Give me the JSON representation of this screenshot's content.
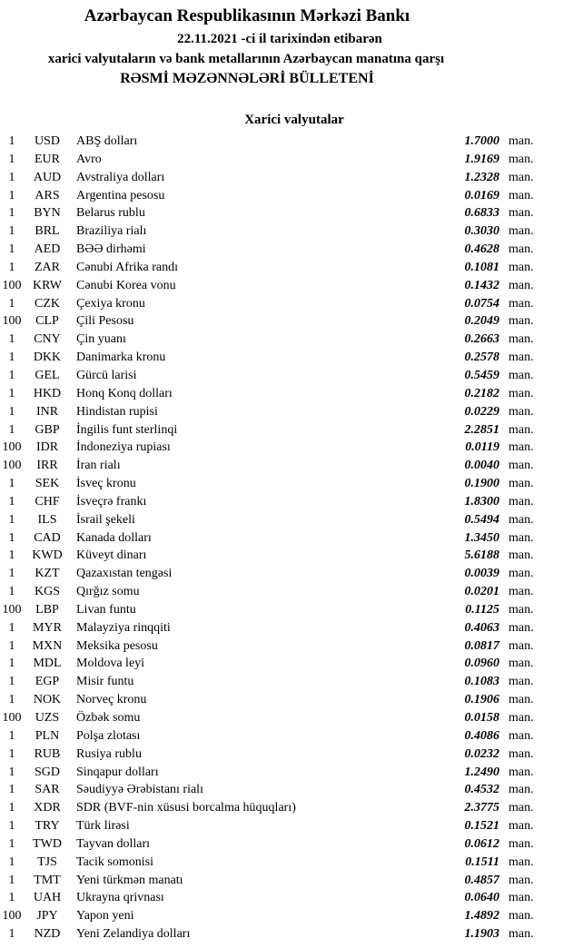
{
  "header": {
    "bank_name": "Azərbaycan Respublikasının Mərkəzi Bankı",
    "date_line": "22.11.2021 -ci il tarixindən etibarən",
    "scope_line": "xarici valyutaların və bank metallarının Azərbaycan manatına qarşı",
    "bulletin_title": "RƏSMİ MƏZƏNNƏLƏRİ BÜLLETENİ"
  },
  "section": {
    "title": "Xarici valyutalar"
  },
  "rates": [
    {
      "qty": "1",
      "code": "USD",
      "name": "ABŞ dolları",
      "rate": "1.7000",
      "unit": "man."
    },
    {
      "qty": "1",
      "code": "EUR",
      "name": "Avro",
      "rate": "1.9169",
      "unit": "man."
    },
    {
      "qty": "1",
      "code": "AUD",
      "name": "Avstraliya dolları",
      "rate": "1.2328",
      "unit": "man."
    },
    {
      "qty": "1",
      "code": "ARS",
      "name": "Argentina pesosu",
      "rate": "0.0169",
      "unit": "man."
    },
    {
      "qty": "1",
      "code": "BYN",
      "name": "Belarus rublu",
      "rate": "0.6833",
      "unit": "man."
    },
    {
      "qty": "1",
      "code": "BRL",
      "name": "Braziliya rialı",
      "rate": "0.3030",
      "unit": "man."
    },
    {
      "qty": "1",
      "code": "AED",
      "name": "BƏƏ dirhəmi",
      "rate": "0.4628",
      "unit": "man."
    },
    {
      "qty": "1",
      "code": "ZAR",
      "name": "Cənubi Afrika randı",
      "rate": "0.1081",
      "unit": "man."
    },
    {
      "qty": "100",
      "code": "KRW",
      "name": "Cənubi Korea vonu",
      "rate": "0.1432",
      "unit": "man."
    },
    {
      "qty": "1",
      "code": "CZK",
      "name": "Çexiya kronu",
      "rate": "0.0754",
      "unit": "man."
    },
    {
      "qty": "100",
      "code": "CLP",
      "name": "Çili Pesosu",
      "rate": "0.2049",
      "unit": "man."
    },
    {
      "qty": "1",
      "code": "CNY",
      "name": "Çin yuanı",
      "rate": "0.2663",
      "unit": "man."
    },
    {
      "qty": "1",
      "code": "DKK",
      "name": "Danimarka kronu",
      "rate": "0.2578",
      "unit": "man."
    },
    {
      "qty": "1",
      "code": "GEL",
      "name": "Gürcü larisi",
      "rate": "0.5459",
      "unit": "man."
    },
    {
      "qty": "1",
      "code": "HKD",
      "name": "Honq Konq dolları",
      "rate": "0.2182",
      "unit": "man."
    },
    {
      "qty": "1",
      "code": "INR",
      "name": "Hindistan rupisi",
      "rate": "0.0229",
      "unit": "man."
    },
    {
      "qty": "1",
      "code": "GBP",
      "name": "İngilis funt sterlinqi",
      "rate": "2.2851",
      "unit": "man."
    },
    {
      "qty": "100",
      "code": "IDR",
      "name": "İndoneziya rupiası",
      "rate": "0.0119",
      "unit": "man."
    },
    {
      "qty": "100",
      "code": "IRR",
      "name": "İran rialı",
      "rate": "0.0040",
      "unit": "man."
    },
    {
      "qty": "1",
      "code": "SEK",
      "name": "İsveç kronu",
      "rate": "0.1900",
      "unit": "man."
    },
    {
      "qty": "1",
      "code": "CHF",
      "name": "İsveçrə frankı",
      "rate": "1.8300",
      "unit": "man."
    },
    {
      "qty": "1",
      "code": "ILS",
      "name": "İsrail şekeli",
      "rate": "0.5494",
      "unit": "man."
    },
    {
      "qty": "1",
      "code": "CAD",
      "name": "Kanada dolları",
      "rate": "1.3450",
      "unit": "man."
    },
    {
      "qty": "1",
      "code": "KWD",
      "name": "Küveyt dinarı",
      "rate": "5.6188",
      "unit": "man."
    },
    {
      "qty": "1",
      "code": "KZT",
      "name": "Qazaxıstan tengəsi",
      "rate": "0.0039",
      "unit": "man."
    },
    {
      "qty": "1",
      "code": "KGS",
      "name": "Qırğız somu",
      "rate": "0.0201",
      "unit": "man."
    },
    {
      "qty": "100",
      "code": "LBP",
      "name": "Livan funtu",
      "rate": "0.1125",
      "unit": "man."
    },
    {
      "qty": "1",
      "code": "MYR",
      "name": "Malayziya rinqqiti",
      "rate": "0.4063",
      "unit": "man."
    },
    {
      "qty": "1",
      "code": "MXN",
      "name": "Meksika pesosu",
      "rate": "0.0817",
      "unit": "man."
    },
    {
      "qty": "1",
      "code": "MDL",
      "name": "Moldova leyi",
      "rate": "0.0960",
      "unit": "man."
    },
    {
      "qty": "1",
      "code": "EGP",
      "name": "Misir funtu",
      "rate": "0.1083",
      "unit": "man."
    },
    {
      "qty": "1",
      "code": "NOK",
      "name": "Norveç kronu",
      "rate": "0.1906",
      "unit": "man."
    },
    {
      "qty": "100",
      "code": "UZS",
      "name": "Özbək somu",
      "rate": "0.0158",
      "unit": "man."
    },
    {
      "qty": "1",
      "code": "PLN",
      "name": "Polşa zlotası",
      "rate": "0.4086",
      "unit": "man."
    },
    {
      "qty": "1",
      "code": "RUB",
      "name": "Rusiya rublu",
      "rate": "0.0232",
      "unit": "man."
    },
    {
      "qty": "1",
      "code": "SGD",
      "name": "Sinqapur dolları",
      "rate": "1.2490",
      "unit": "man."
    },
    {
      "qty": "1",
      "code": "SAR",
      "name": "Səudiyyə Ərəbistanı rialı",
      "rate": "0.4532",
      "unit": "man."
    },
    {
      "qty": "1",
      "code": "XDR",
      "name": "SDR (BVF-nin xüsusi borcalma hüquqları)",
      "rate": "2.3775",
      "unit": "man."
    },
    {
      "qty": "1",
      "code": "TRY",
      "name": "Türk lirəsi",
      "rate": "0.1521",
      "unit": "man."
    },
    {
      "qty": "1",
      "code": "TWD",
      "name": "Tayvan dolları",
      "rate": "0.0612",
      "unit": "man."
    },
    {
      "qty": "1",
      "code": "TJS",
      "name": "Tacik somonisi",
      "rate": "0.1511",
      "unit": "man."
    },
    {
      "qty": "1",
      "code": "TMT",
      "name": "Yeni türkmən manatı",
      "rate": "0.4857",
      "unit": "man."
    },
    {
      "qty": "1",
      "code": "UAH",
      "name": "Ukrayna qrivnası",
      "rate": "0.0640",
      "unit": "man."
    },
    {
      "qty": "100",
      "code": "JPY",
      "name": "Yapon yeni",
      "rate": "1.4892",
      "unit": "man."
    },
    {
      "qty": "1",
      "code": "NZD",
      "name": "Yeni Zelandiya dolları",
      "rate": "1.1903",
      "unit": "man."
    }
  ]
}
